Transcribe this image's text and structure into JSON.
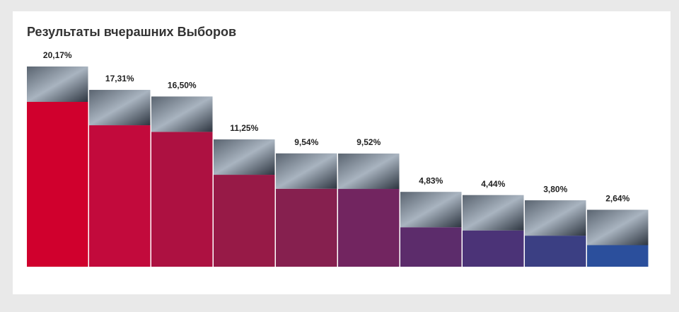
{
  "chart_data": {
    "type": "bar",
    "title": "Результаты вчерашних Выборов",
    "categories": [
      null,
      null,
      null,
      null,
      null,
      null,
      null,
      null,
      null,
      null
    ],
    "values": [
      20.17,
      17.31,
      16.5,
      11.25,
      9.54,
      9.52,
      4.83,
      4.44,
      3.8,
      2.64
    ],
    "value_labels": [
      "20,17%",
      "17,31%",
      "16,50%",
      "11,25%",
      "9,54%",
      "9,52%",
      "4,83%",
      "4,44%",
      "3,80%",
      "2,64%"
    ],
    "colors": [
      "#d0002d",
      "#c20a3c",
      "#ad1141",
      "#971a47",
      "#86204f",
      "#722560",
      "#5c2c6b",
      "#4b3377",
      "#3b3f83",
      "#2b4f9c"
    ]
  }
}
